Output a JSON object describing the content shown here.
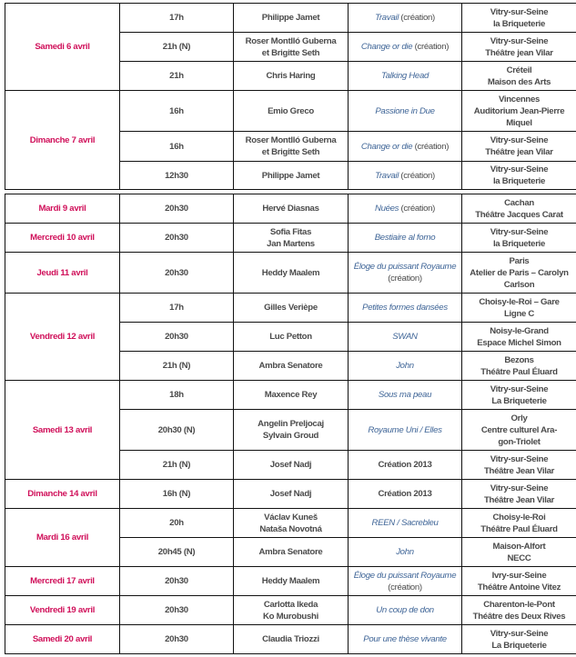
{
  "colors": {
    "day": "#d0105a",
    "title": "#3f6597",
    "text": "#4a4a4a"
  },
  "tables": [
    {
      "days": [
        {
          "day": "Samedi 6 avril",
          "shows": [
            {
              "time": "17h",
              "choreographer": [
                "Philippe Jamet"
              ],
              "title": "Travail",
              "note": " (création)",
              "title_italic": true,
              "place": [
                "Vitry-sur-Seine",
                "la Briqueterie"
              ]
            },
            {
              "time": "21h (N)",
              "choreographer": [
                "Roser Montlló Guberna",
                "et Brigitte Seth"
              ],
              "title": "Change or die",
              "note": " (création)",
              "title_italic": true,
              "place": [
                "Vitry-sur-Seine",
                "Théâtre jean Vilar"
              ]
            },
            {
              "time": "21h",
              "choreographer": [
                "Chris Haring"
              ],
              "title": "Talking Head",
              "note": "",
              "title_italic": true,
              "place": [
                "Créteil",
                "Maison des Arts"
              ]
            }
          ]
        },
        {
          "day": "Dimanche 7 avril",
          "shows": [
            {
              "time": "16h",
              "choreographer": [
                "Emio Greco"
              ],
              "title": "Passione in Due",
              "note": "",
              "title_italic": true,
              "place": [
                "Vincennes",
                "Auditorium Jean-Pierre",
                "Miquel"
              ]
            },
            {
              "time": "16h",
              "choreographer": [
                "Roser Montlló Guberna",
                "et Brigitte Seth"
              ],
              "title": "Change or die",
              "note": " (création)",
              "title_italic": true,
              "place": [
                "Vitry-sur-Seine",
                "Théâtre jean Vilar"
              ]
            },
            {
              "time": "12h30",
              "choreographer": [
                "Philippe Jamet"
              ],
              "title": "Travail",
              "note": " (création)",
              "title_italic": true,
              "place": [
                "Vitry-sur-Seine",
                "la Briqueterie"
              ]
            }
          ]
        }
      ]
    },
    {
      "days": [
        {
          "day": "Mardi 9 avril",
          "shows": [
            {
              "time": "20h30",
              "choreographer": [
                "Hervé Diasnas"
              ],
              "title": "Nuées",
              "note": " (création)",
              "title_italic": true,
              "place": [
                "Cachan",
                "Théâtre Jacques Carat"
              ]
            }
          ]
        },
        {
          "day": "Mercredi 10 avril",
          "shows": [
            {
              "time": "20h30",
              "choreographer": [
                "Sofia Fitas",
                "Jan Martens"
              ],
              "title": "Bestiaire al forno",
              "note": "",
              "title_italic": true,
              "place": [
                "Vitry-sur-Seine",
                "la Briqueterie"
              ]
            }
          ]
        },
        {
          "day": "Jeudi 11 avril",
          "shows": [
            {
              "time": "20h30",
              "choreographer": [
                "Heddy Maalem"
              ],
              "title": "Éloge du puissant Royaume",
              "note": "(création)",
              "note_newline": true,
              "title_italic": true,
              "place": [
                "Paris",
                "Atelier de Paris – Carolyn",
                "Carlson"
              ]
            }
          ]
        },
        {
          "day": "Vendredi 12 avril",
          "shows": [
            {
              "time": "17h",
              "choreographer": [
                "Gilles Verièpe"
              ],
              "title": "Petites formes dansées",
              "note": "",
              "title_italic": true,
              "place": [
                "Choisy-le-Roi – Gare",
                "Ligne C"
              ]
            },
            {
              "time": "20h30",
              "choreographer": [
                "Luc Petton"
              ],
              "title": "SWAN",
              "note": "",
              "title_italic": true,
              "place": [
                "Noisy-le-Grand",
                "Espace Michel Simon"
              ]
            },
            {
              "time": "21h (N)",
              "choreographer": [
                "Ambra Senatore"
              ],
              "title": "John",
              "note": "",
              "title_italic": true,
              "place": [
                "Bezons",
                "Théâtre Paul Éluard"
              ]
            }
          ]
        },
        {
          "day": "Samedi 13 avril",
          "shows": [
            {
              "time": "18h",
              "choreographer": [
                "Maxence Rey"
              ],
              "title": "Sous ma peau",
              "note": "",
              "title_italic": true,
              "place": [
                "Vitry-sur-Seine",
                "La Briqueterie"
              ]
            },
            {
              "time": "20h30 (N)",
              "choreographer": [
                "Angelin Preljocaj",
                "Sylvain Groud"
              ],
              "title": "Royaume Uni / Elles",
              "note": "",
              "title_italic": true,
              "place": [
                "Orly",
                "Centre culturel Ara-",
                "gon-Triolet"
              ]
            },
            {
              "time": "21h (N)",
              "choreographer": [
                "Josef Nadj"
              ],
              "title": "Création 2013",
              "note": "",
              "title_italic": false,
              "place": [
                "Vitry-sur-Seine",
                "Théâtre Jean Vilar"
              ]
            }
          ]
        },
        {
          "day": "Dimanche 14 avril",
          "shows": [
            {
              "time": "16h (N)",
              "choreographer": [
                "Josef Nadj"
              ],
              "title": "Création 2013",
              "note": "",
              "title_italic": false,
              "place": [
                "Vitry-sur-Seine",
                "Théâtre Jean Vilar"
              ]
            }
          ]
        },
        {
          "day": "Mardi 16 avril",
          "shows": [
            {
              "time": "20h",
              "choreographer": [
                "Václav Kuneš",
                "Nataša Novotná"
              ],
              "title": "REEN / Sacrebleu",
              "note": "",
              "title_italic": true,
              "place": [
                "Choisy-le-Roi",
                "Théâtre Paul Éluard"
              ]
            },
            {
              "time": "20h45 (N)",
              "choreographer": [
                "Ambra Senatore"
              ],
              "title": "John",
              "note": "",
              "title_italic": true,
              "place": [
                "Maison-Alfort",
                "NECC"
              ]
            }
          ]
        },
        {
          "day": "Mercredi 17 avril",
          "shows": [
            {
              "time": "20h30",
              "choreographer": [
                "Heddy Maalem"
              ],
              "title": "Éloge du puissant Royaume",
              "note": "(création)",
              "note_newline": true,
              "title_italic": true,
              "place": [
                "Ivry-sur-Seine",
                "Théâtre Antoine Vitez"
              ]
            }
          ]
        },
        {
          "day": "Vendredi 19 avril",
          "shows": [
            {
              "time": "20h30",
              "choreographer": [
                "Carlotta Ikeda",
                "Ko Murobushi"
              ],
              "title": "Un coup de don",
              "note": "",
              "title_italic": true,
              "place": [
                "Charenton-le-Pont",
                "Théâtre des Deux Rives"
              ]
            }
          ]
        },
        {
          "day": "Samedi 20 avril",
          "shows": [
            {
              "time": "20h30",
              "choreographer": [
                "Claudia Triozzi"
              ],
              "title": "Pour une thèse vivante",
              "note": "",
              "title_italic": true,
              "place": [
                "Vitry-sur-Seine",
                "La Briqueterie"
              ]
            }
          ]
        }
      ]
    }
  ]
}
